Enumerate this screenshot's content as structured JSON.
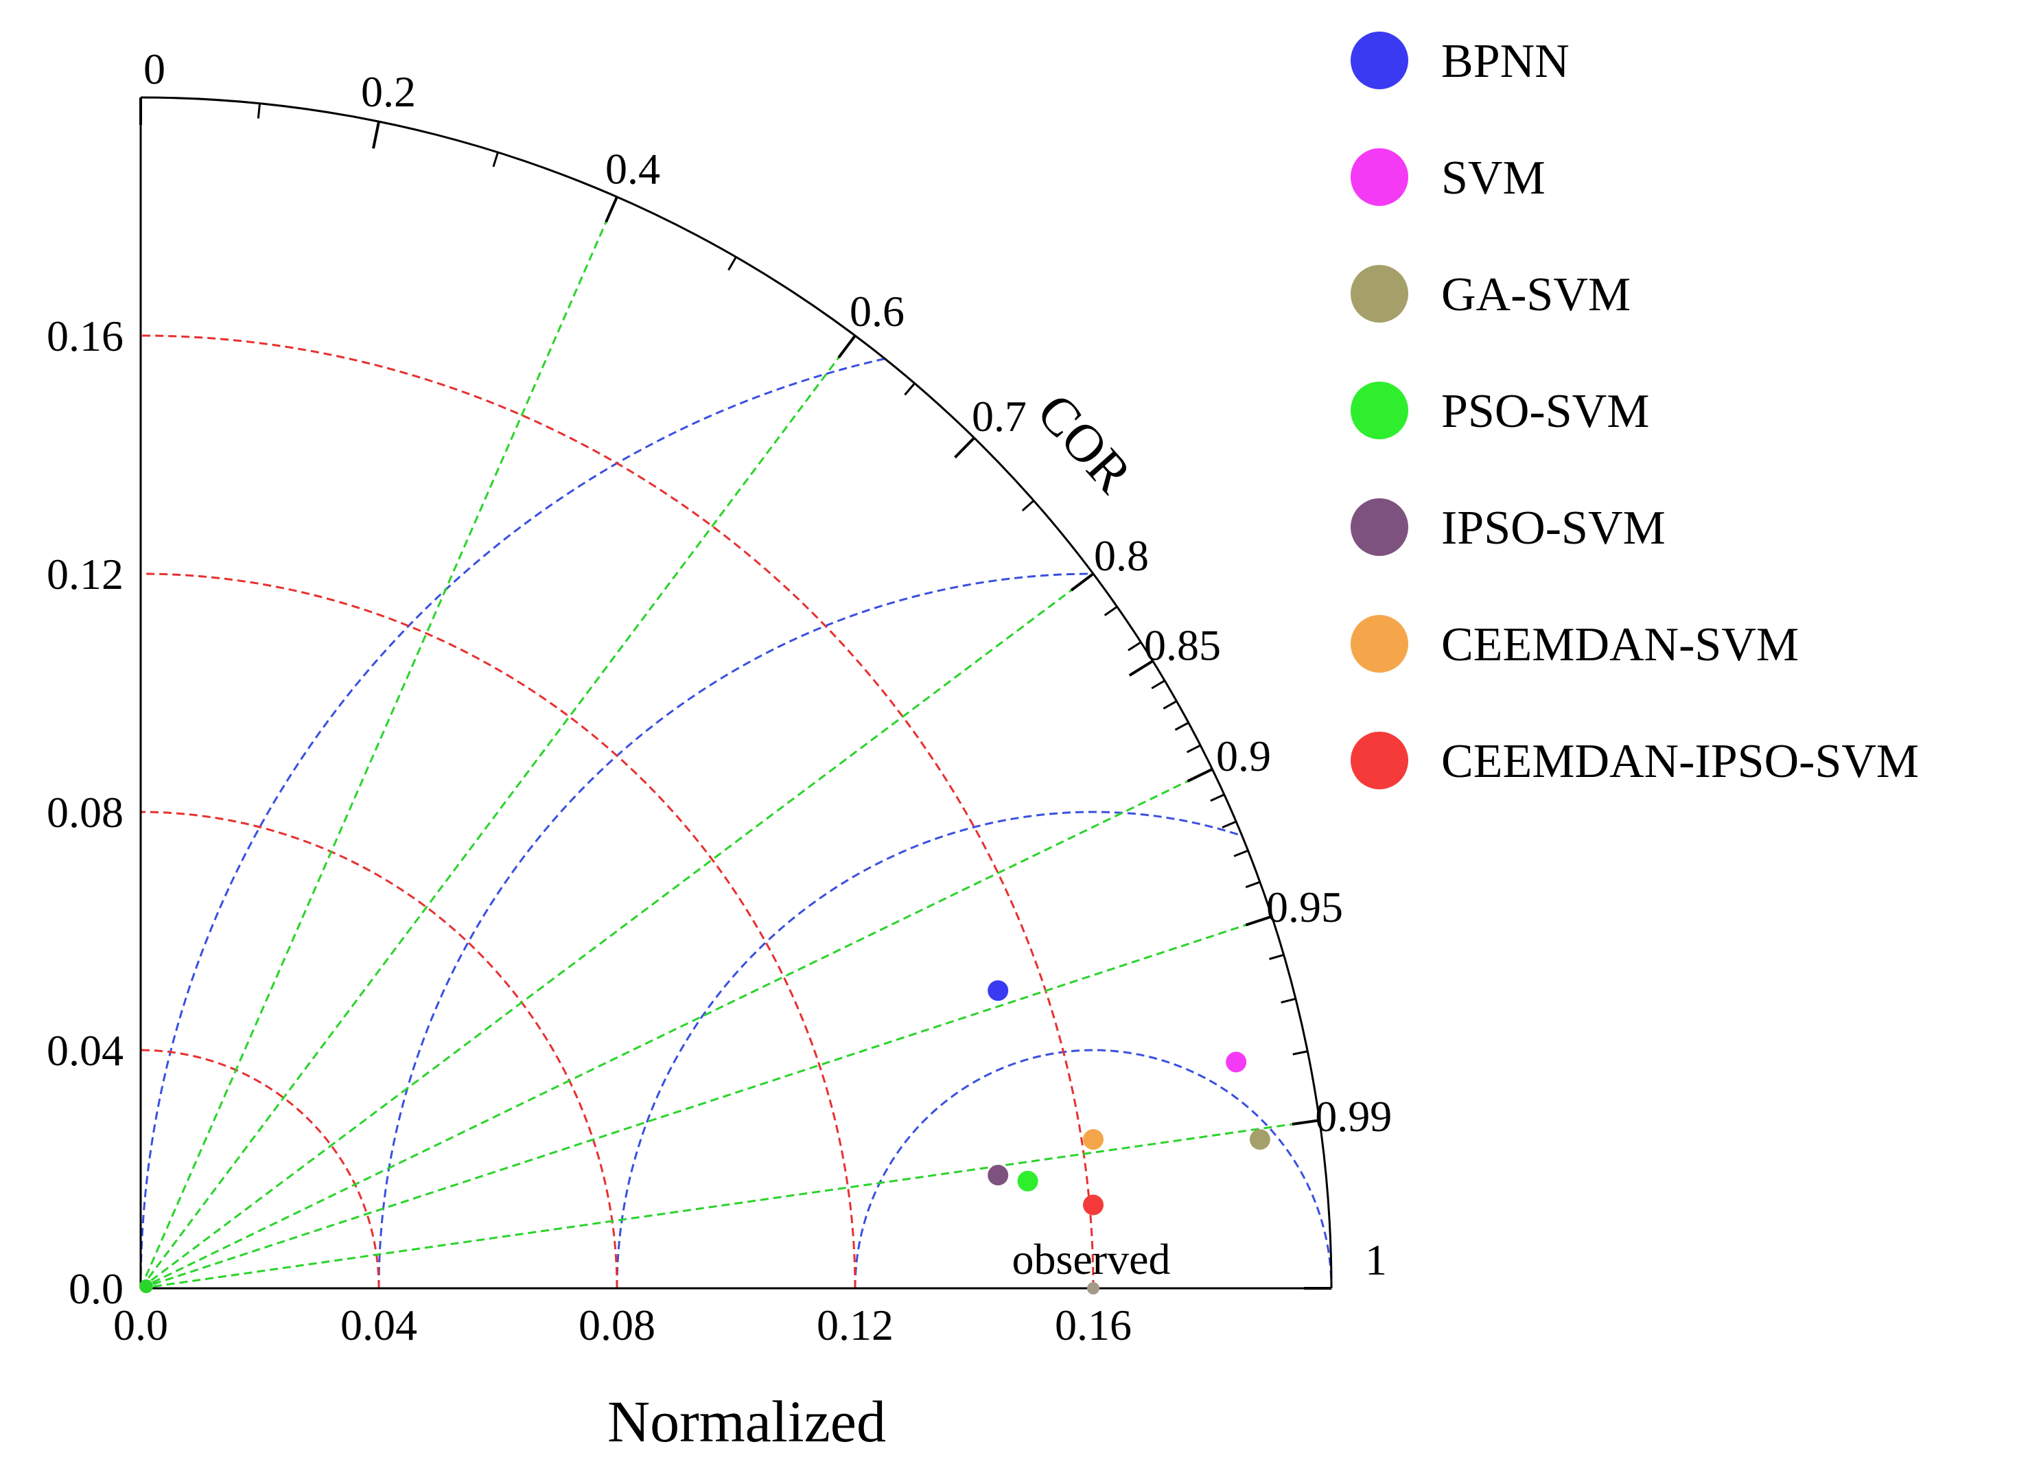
{
  "chart_data": {
    "type": "scatter",
    "subtype": "taylor-diagram",
    "xlabel": "Normalized",
    "arc_label": "COR",
    "std_max": 0.2,
    "xticks": [
      "0.0",
      "0.04",
      "0.08",
      "0.12",
      "0.16"
    ],
    "xtick_values": [
      0,
      0.04,
      0.08,
      0.12,
      0.16
    ],
    "yticks": [
      "0.0",
      "0.04",
      "0.08",
      "0.12",
      "0.16"
    ],
    "ytick_values": [
      0,
      0.04,
      0.08,
      0.12,
      0.16
    ],
    "cor_labels": [
      "0",
      "0.2",
      "0.4",
      "0.6",
      "0.7",
      "0.8",
      "0.85",
      "0.9",
      "0.95",
      "0.99",
      "1"
    ],
    "cor_label_values": [
      0,
      0.2,
      0.4,
      0.6,
      0.7,
      0.8,
      0.85,
      0.9,
      0.95,
      0.99,
      1
    ],
    "cor_minor_ticks": [
      0.1,
      0.3,
      0.5,
      0.65,
      0.75,
      0.82,
      0.84,
      0.86,
      0.87,
      0.88,
      0.89,
      0.91,
      0.92,
      0.93,
      0.94,
      0.96,
      0.97,
      0.98
    ],
    "cor_lines": [
      0.4,
      0.6,
      0.8,
      0.9,
      0.95,
      0.99
    ],
    "std_arcs": [
      0.04,
      0.08,
      0.12,
      0.16
    ],
    "rms_arcs": [
      0.04,
      0.08,
      0.12,
      0.16
    ],
    "reference": {
      "label": "observed",
      "std": 0.16
    },
    "series": [
      {
        "name": "BPNN",
        "color": "#3a3af2",
        "x": 0.144,
        "y": 0.05
      },
      {
        "name": "SVM",
        "color": "#f53af5",
        "x": 0.184,
        "y": 0.038
      },
      {
        "name": "GA-SVM",
        "color": "#a5a06a",
        "x": 0.188,
        "y": 0.025
      },
      {
        "name": "PSO-SVM",
        "color": "#2eee2e",
        "x": 0.149,
        "y": 0.018
      },
      {
        "name": "IPSO-SVM",
        "color": "#7e527e",
        "x": 0.144,
        "y": 0.019
      },
      {
        "name": "CEEMDAN-SVM",
        "color": "#f5a64a",
        "x": 0.16,
        "y": 0.025
      },
      {
        "name": "CEEMDAN-IPSO-SVM",
        "color": "#f53a3a",
        "x": 0.16,
        "y": 0.014
      }
    ]
  }
}
